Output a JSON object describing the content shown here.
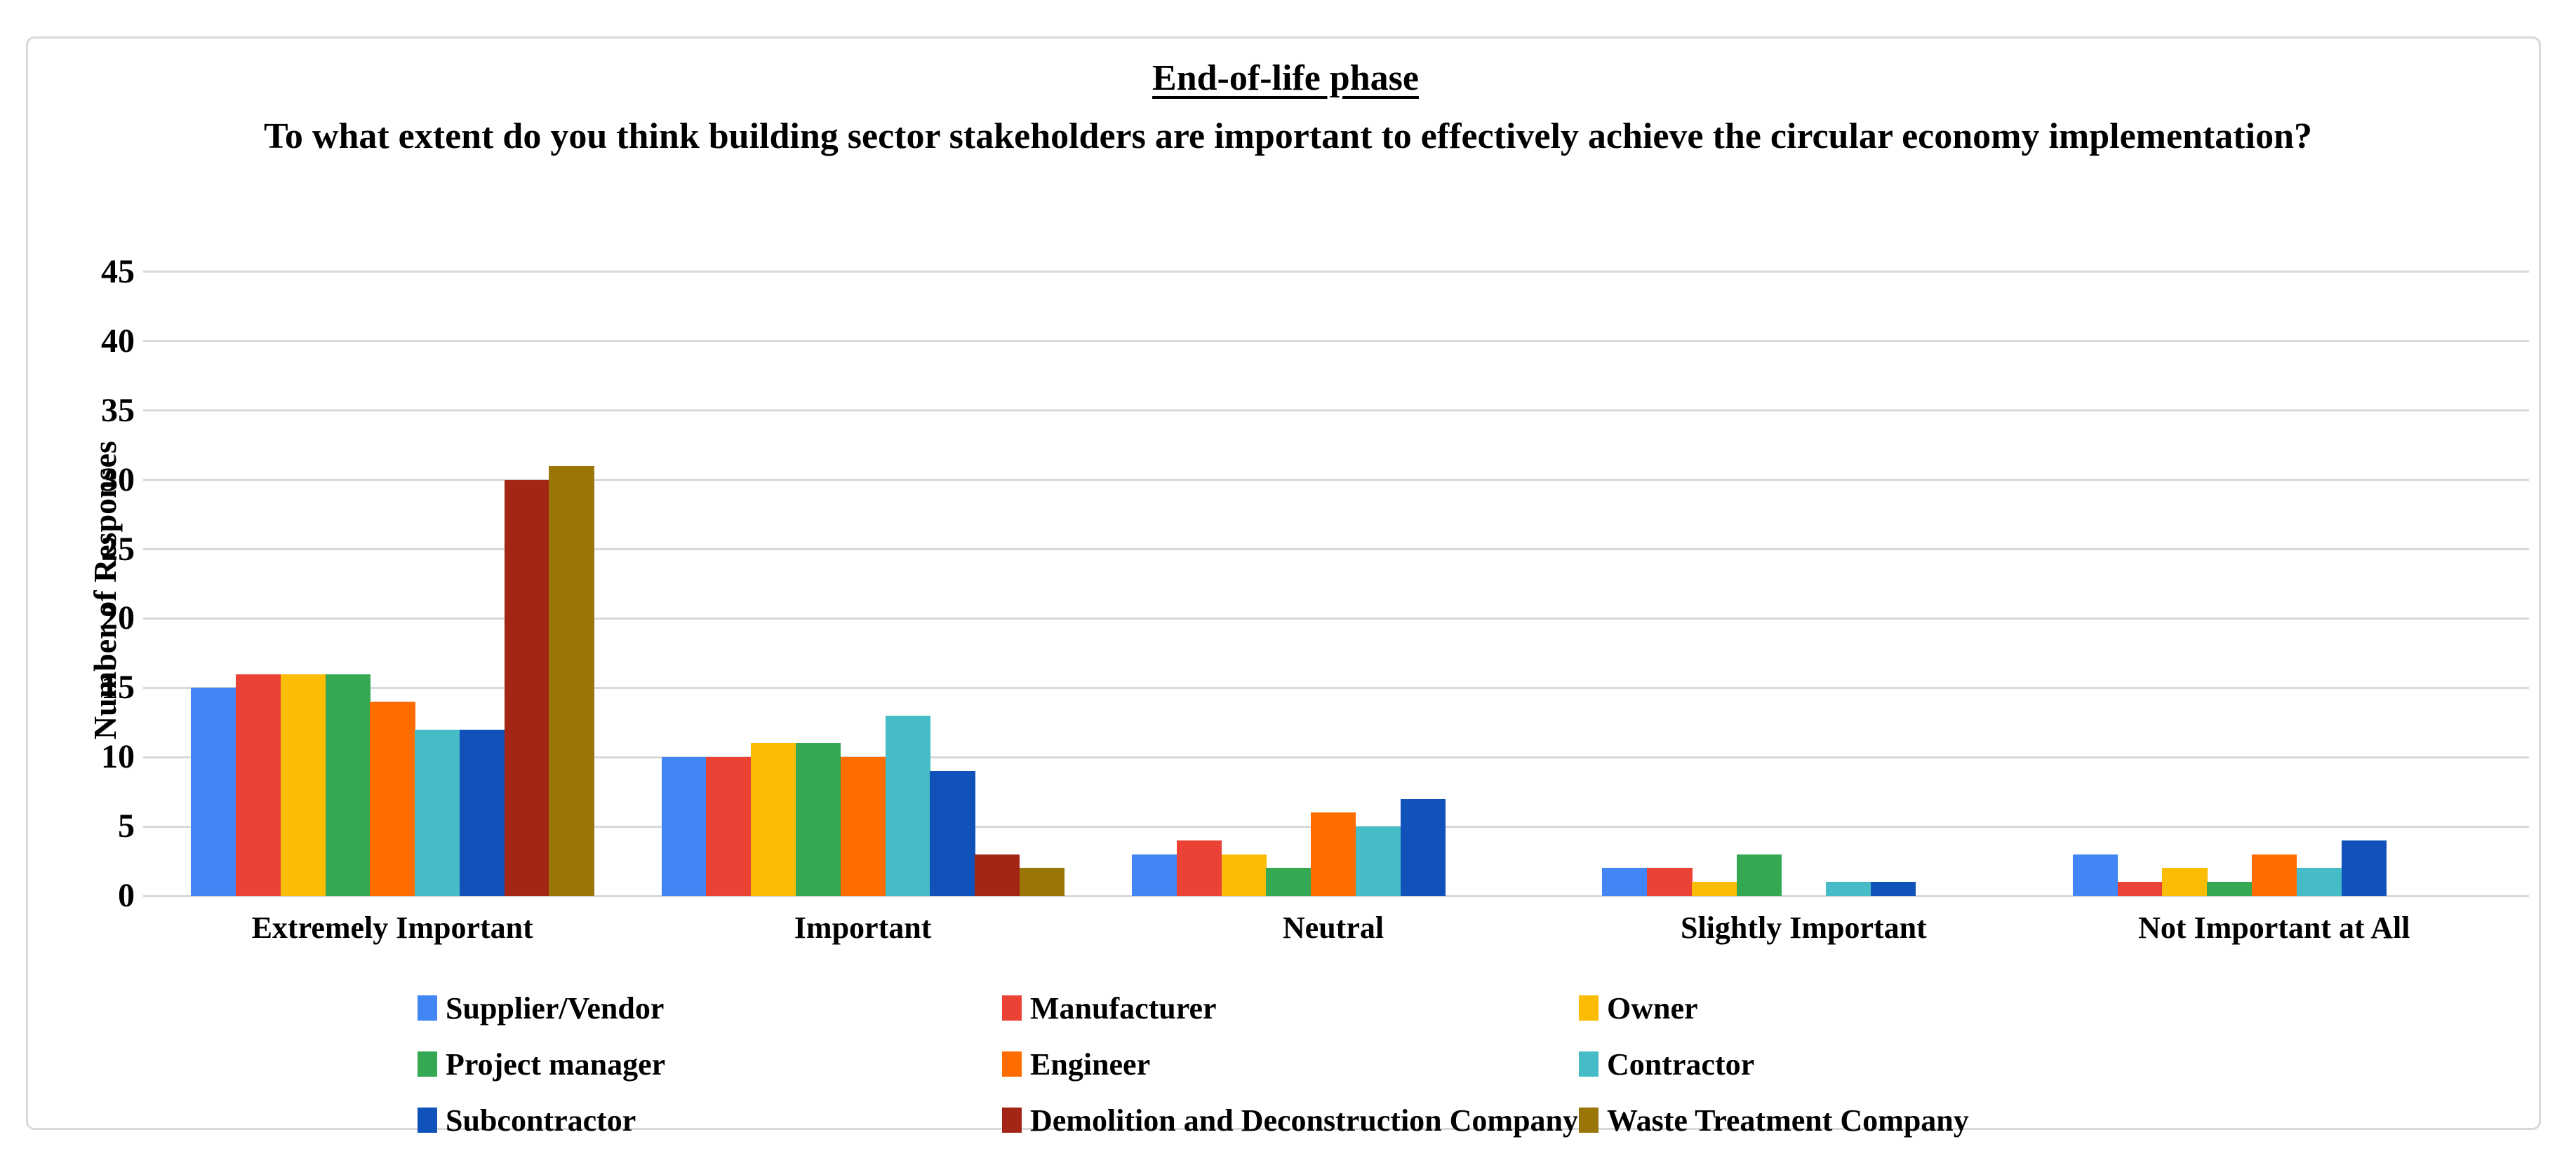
{
  "frame": {
    "border_color": "#d9d9d9",
    "background": "#ffffff"
  },
  "title": {
    "line1": "End-of-life phase",
    "question": "To what extent do you think building sector stakeholders are important to effectively achieve the circular economy implementation?"
  },
  "chart_data": {
    "type": "bar",
    "title": "End-of-life phase — To what extent do you think building sector stakeholders are important to effectively achieve the circular economy implementation?",
    "xlabel": "",
    "ylabel": "Number of Responses",
    "ylim": [
      0,
      45
    ],
    "yticks": [
      0,
      5,
      10,
      15,
      20,
      25,
      30,
      35,
      40,
      45
    ],
    "grid": "horizontal",
    "gridline_color": "#d9d9d9",
    "legend_position": "bottom",
    "categories": [
      "Extremely Important",
      "Important",
      "Neutral",
      "Slightly Important",
      "Not Important at All"
    ],
    "series": [
      {
        "name": "Supplier/Vendor",
        "color": "#4285F4",
        "values": [
          15,
          10,
          3,
          2,
          3
        ]
      },
      {
        "name": "Manufacturer",
        "color": "#EA4335",
        "values": [
          16,
          10,
          4,
          2,
          1
        ]
      },
      {
        "name": "Owner",
        "color": "#FBBC04",
        "values": [
          16,
          11,
          3,
          1,
          2
        ]
      },
      {
        "name": "Project manager",
        "color": "#34A853",
        "values": [
          16,
          11,
          2,
          3,
          1
        ]
      },
      {
        "name": "Engineer",
        "color": "#FF6D01",
        "values": [
          14,
          10,
          6,
          0,
          3
        ]
      },
      {
        "name": "Contractor",
        "color": "#46BDC6",
        "values": [
          12,
          13,
          5,
          1,
          2
        ]
      },
      {
        "name": "Subcontractor",
        "color": "#1152BA",
        "values": [
          12,
          9,
          7,
          1,
          4
        ]
      },
      {
        "name": "Demolition and Deconstruction Company",
        "color": "#A32516",
        "values": [
          30,
          3,
          0,
          0,
          0
        ]
      },
      {
        "name": "Waste Treatment Company",
        "color": "#9A7609",
        "values": [
          31,
          2,
          0,
          0,
          0
        ]
      }
    ],
    "legend_columns": [
      [
        0,
        3,
        6
      ],
      [
        1,
        4,
        7
      ],
      [
        2,
        5,
        8
      ]
    ]
  }
}
